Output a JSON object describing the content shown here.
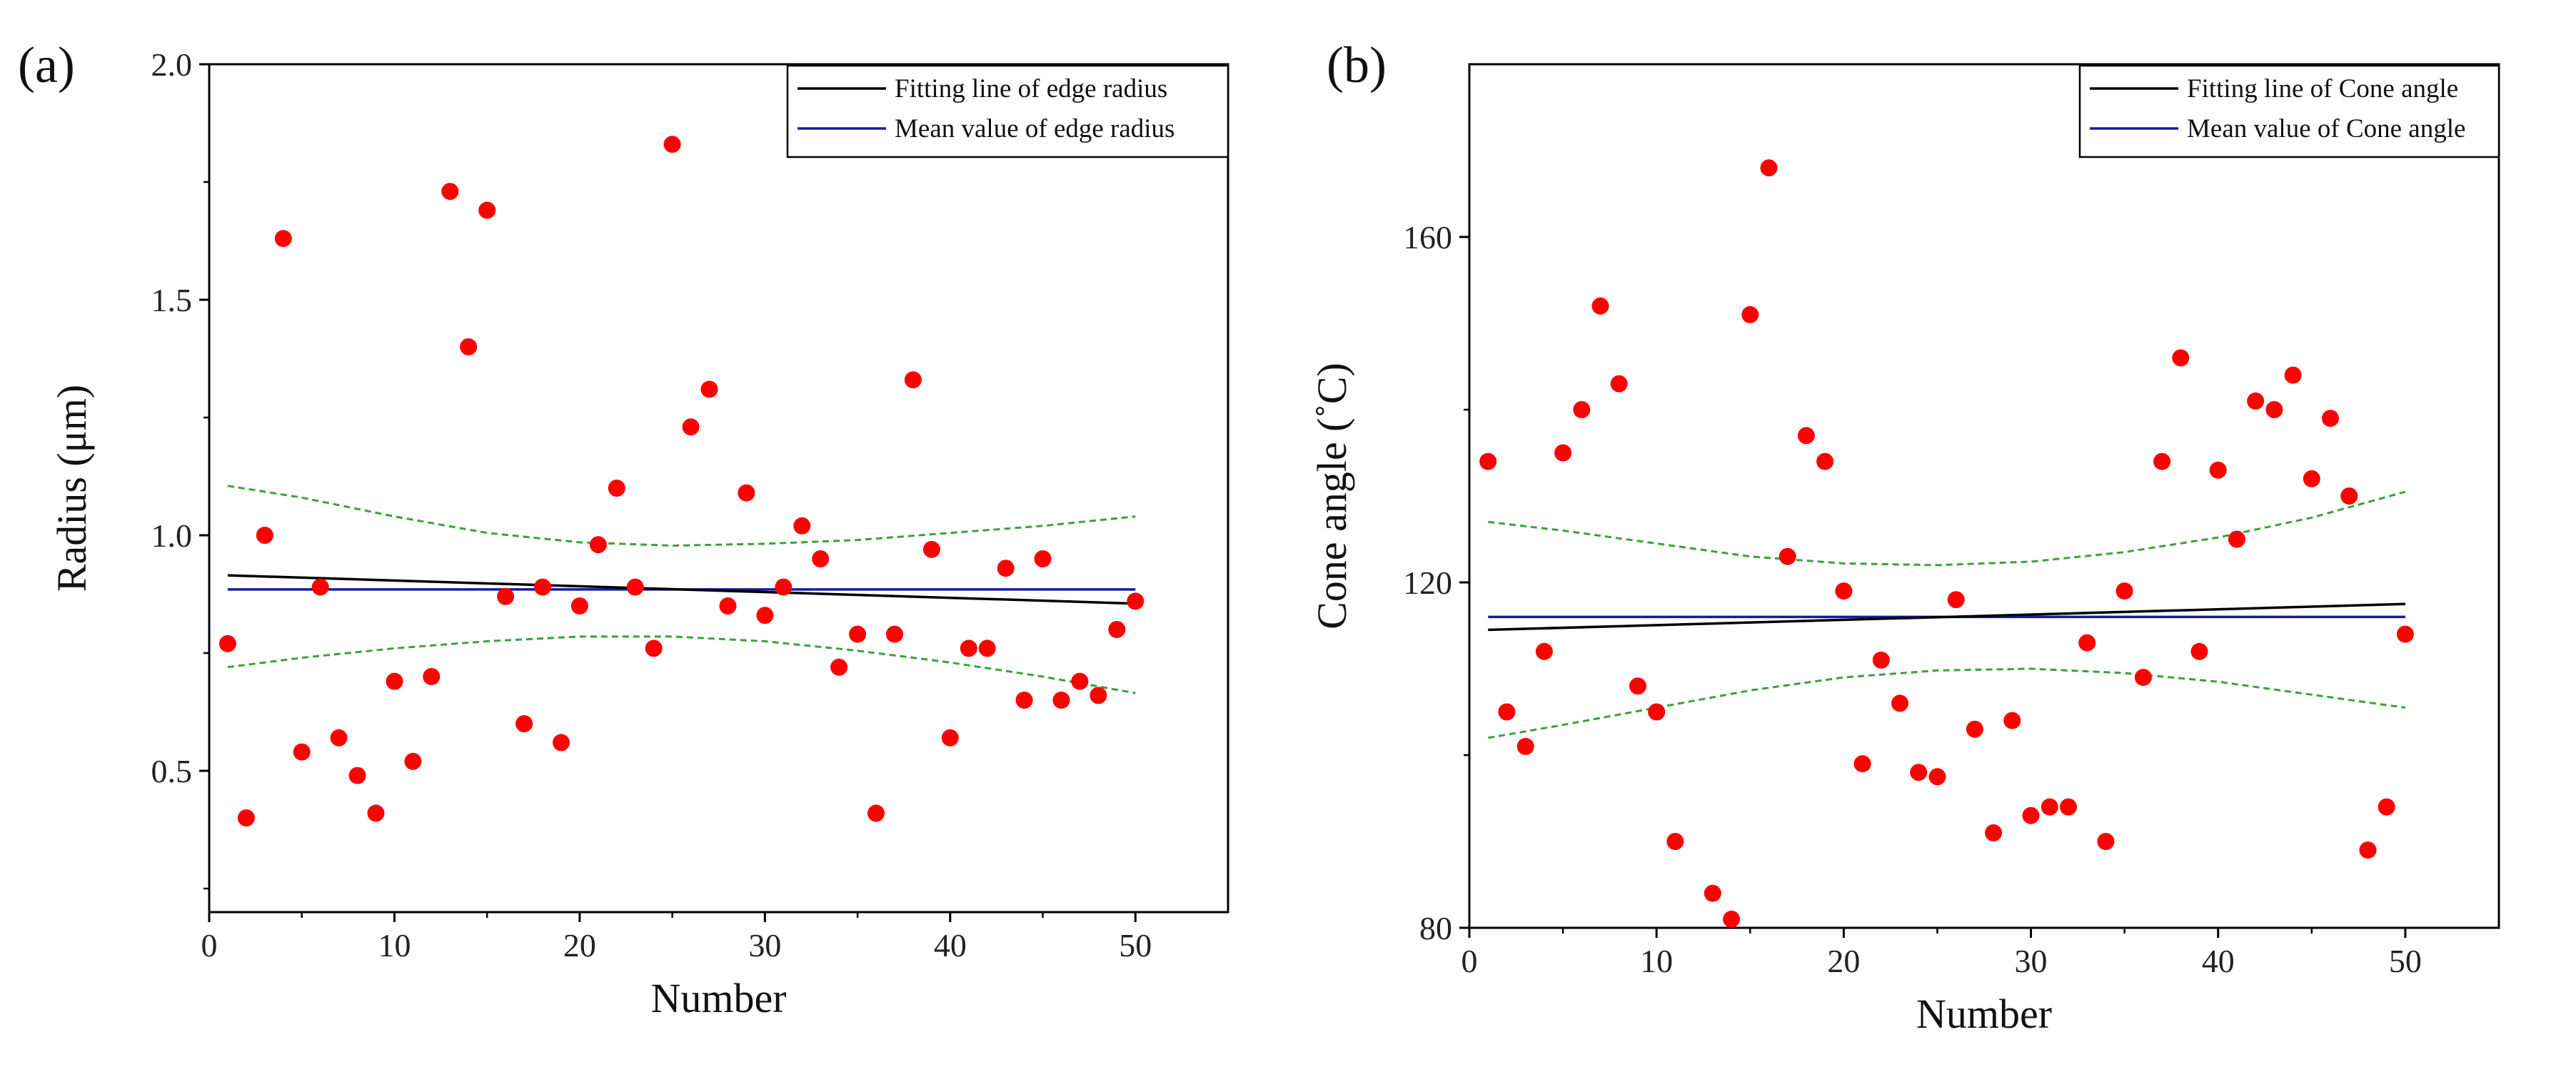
{
  "chart_data": [
    {
      "type": "scatter",
      "panel_label": "(a)",
      "title": "",
      "xlabel": "Number",
      "ylabel": "Radius (μm)",
      "xlim": [
        0,
        55
      ],
      "ylim": [
        0.2,
        2.0
      ],
      "xticks": [
        0,
        10,
        20,
        30,
        40,
        50
      ],
      "yticks": [
        0.5,
        1.0,
        1.5,
        2.0
      ],
      "xtick_labels": [
        "0",
        "10",
        "20",
        "30",
        "40",
        "50"
      ],
      "ytick_labels": [
        "0.5",
        "1.0",
        "1.5",
        "2.0"
      ],
      "grid": false,
      "legend_position": "top-right",
      "legend": [
        {
          "label": "Fitting line of edge radius",
          "color": "#000000"
        },
        {
          "label": "Mean value of edge radius",
          "color": "#1a1aa0"
        }
      ],
      "point_color": "#ff0000",
      "points": {
        "x": [
          1,
          2,
          3,
          4,
          5,
          6,
          7,
          8,
          9,
          10,
          11,
          12,
          13,
          14,
          15,
          16,
          17,
          18,
          19,
          20,
          21,
          22,
          23,
          24,
          25,
          26,
          27,
          28,
          29,
          30,
          31,
          32,
          33,
          34,
          35,
          36,
          37,
          38,
          39,
          40,
          41,
          42,
          43,
          44,
          45,
          46,
          47,
          48,
          49,
          50
        ],
        "y": [
          0.77,
          0.4,
          1.0,
          1.63,
          0.54,
          0.89,
          0.57,
          0.49,
          0.41,
          0.69,
          0.52,
          0.7,
          1.73,
          1.4,
          1.69,
          0.87,
          0.6,
          0.89,
          0.56,
          0.85,
          0.98,
          1.1,
          0.89,
          0.76,
          1.83,
          1.23,
          1.31,
          0.85,
          1.09,
          0.83,
          0.89,
          1.02,
          0.95,
          0.72,
          0.79,
          0.41,
          0.79,
          1.33,
          0.97,
          0.57,
          0.76,
          0.76,
          0.93,
          0.65,
          0.95,
          0.65,
          0.69,
          0.66,
          0.8,
          0.86
        ]
      },
      "fit_line": {
        "x": [
          1,
          50
        ],
        "y": [
          0.915,
          0.855
        ],
        "color": "#000000"
      },
      "mean_line": {
        "x": [
          1,
          50
        ],
        "y": [
          0.885,
          0.885
        ],
        "color": "#1a1aa0"
      },
      "confidence_band": {
        "color": "#3aa23a",
        "x": [
          1,
          5,
          10,
          15,
          20,
          25,
          30,
          35,
          40,
          45,
          50
        ],
        "upper": [
          1.105,
          1.08,
          1.04,
          1.005,
          0.985,
          0.978,
          0.982,
          0.99,
          1.005,
          1.02,
          1.04
        ],
        "lower": [
          0.72,
          0.74,
          0.76,
          0.775,
          0.785,
          0.785,
          0.775,
          0.755,
          0.73,
          0.7,
          0.665
        ]
      }
    },
    {
      "type": "scatter",
      "panel_label": "(b)",
      "title": "",
      "xlabel": "Number",
      "ylabel": "Cone angle (˚C)",
      "xlim": [
        0,
        55
      ],
      "ylim": [
        80,
        180
      ],
      "xticks": [
        0,
        10,
        20,
        30,
        40,
        50
      ],
      "yticks": [
        80,
        120,
        160
      ],
      "xtick_labels": [
        "0",
        "10",
        "20",
        "30",
        "40",
        "50"
      ],
      "ytick_labels": [
        "80",
        "120",
        "160"
      ],
      "grid": false,
      "legend_position": "top-right",
      "legend": [
        {
          "label": "Fitting line of Cone angle",
          "color": "#000000"
        },
        {
          "label": "Mean value of Cone angle",
          "color": "#1a1aa0"
        }
      ],
      "point_color": "#ff0000",
      "points": {
        "x": [
          1,
          2,
          3,
          4,
          5,
          6,
          7,
          8,
          9,
          10,
          11,
          12,
          13,
          14,
          15,
          16,
          17,
          18,
          19,
          20,
          21,
          22,
          23,
          24,
          25,
          26,
          27,
          28,
          29,
          30,
          31,
          32,
          33,
          34,
          35,
          36,
          37,
          38,
          39,
          40,
          41,
          42,
          43,
          44,
          45,
          46,
          47,
          48,
          49,
          50
        ],
        "y": [
          134,
          105,
          101,
          112,
          135,
          140,
          152,
          143,
          108,
          105,
          90,
          null,
          84,
          81,
          151,
          168,
          123,
          137,
          134,
          119,
          99,
          111,
          106,
          98,
          97.5,
          118,
          103,
          91,
          104,
          93,
          94,
          94,
          113,
          90,
          119,
          109,
          134,
          146,
          112,
          133,
          125,
          141,
          140,
          144,
          132,
          139,
          130,
          89,
          94,
          114
        ]
      },
      "fit_line": {
        "x": [
          1,
          50
        ],
        "y": [
          114.5,
          117.5
        ],
        "color": "#000000"
      },
      "mean_line": {
        "x": [
          1,
          50
        ],
        "y": [
          116,
          116
        ],
        "color": "#1a1aa0"
      },
      "confidence_band": {
        "color": "#3aa23a",
        "x": [
          1,
          5,
          10,
          15,
          20,
          25,
          30,
          35,
          40,
          45,
          50
        ],
        "upper": [
          127,
          126,
          124.5,
          123,
          122.2,
          122,
          122.4,
          123.5,
          125.2,
          127.5,
          130.5
        ],
        "lower": [
          102,
          103.5,
          105.5,
          107.5,
          109,
          109.8,
          110,
          109.5,
          108.5,
          107,
          105.5
        ]
      }
    }
  ]
}
